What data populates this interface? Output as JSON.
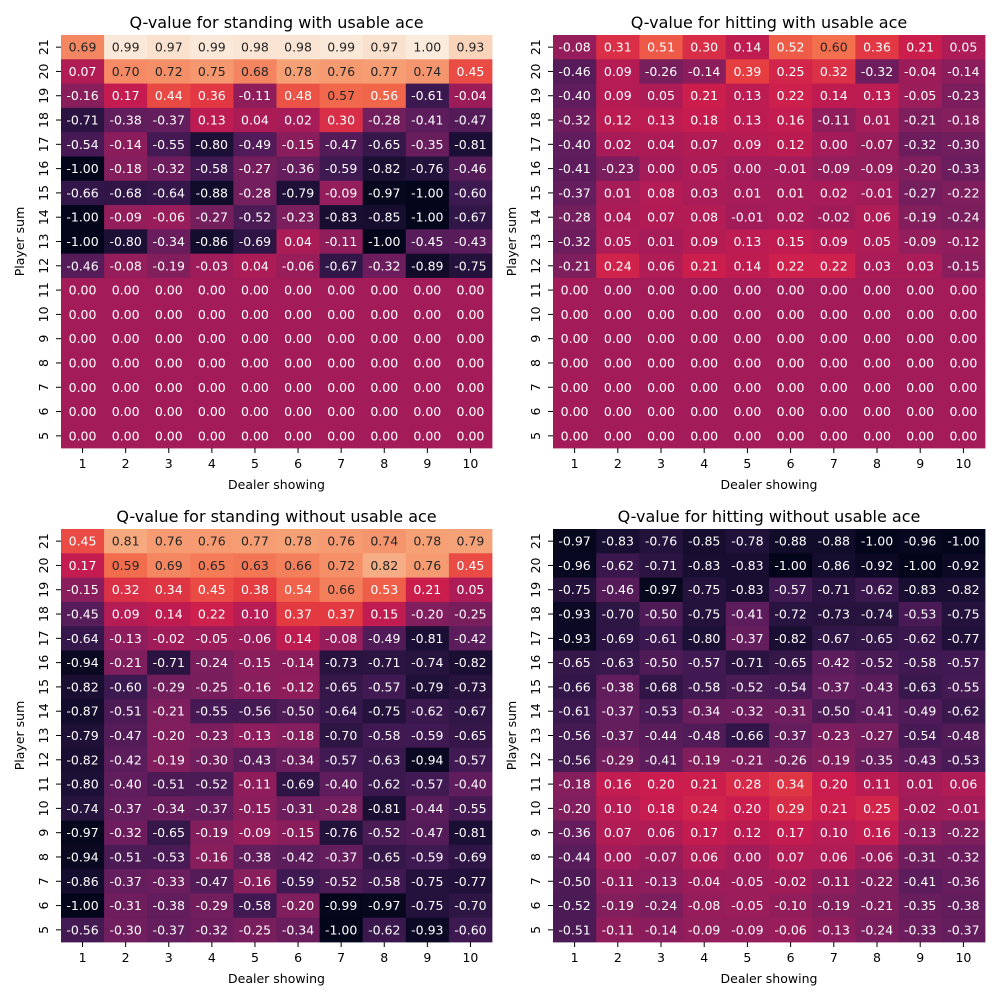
{
  "chart_data": [
    {
      "type": "heatmap",
      "title": "Q-value for standing with usable ace",
      "xlabel": "Dealer showing",
      "ylabel": "Player sum",
      "x": [
        1,
        2,
        3,
        4,
        5,
        6,
        7,
        8,
        9,
        10
      ],
      "y": [
        21,
        20,
        19,
        18,
        17,
        16,
        15,
        14,
        13,
        12,
        11,
        10,
        9,
        8,
        7,
        6,
        5
      ],
      "values": [
        [
          0.69,
          0.99,
          0.97,
          0.99,
          0.98,
          0.98,
          0.99,
          0.97,
          1.0,
          0.93
        ],
        [
          0.07,
          0.7,
          0.72,
          0.75,
          0.68,
          0.78,
          0.76,
          0.77,
          0.74,
          0.45
        ],
        [
          -0.16,
          0.17,
          0.44,
          0.36,
          -0.11,
          0.48,
          0.57,
          0.56,
          -0.61,
          -0.04
        ],
        [
          -0.71,
          -0.38,
          -0.37,
          0.13,
          0.04,
          0.02,
          0.3,
          -0.28,
          -0.41,
          -0.47
        ],
        [
          -0.54,
          -0.14,
          -0.55,
          -0.8,
          -0.49,
          -0.15,
          -0.47,
          -0.65,
          -0.35,
          -0.81
        ],
        [
          -1.0,
          -0.18,
          -0.32,
          -0.58,
          -0.27,
          -0.36,
          -0.59,
          -0.82,
          -0.76,
          -0.46
        ],
        [
          -0.66,
          -0.68,
          -0.64,
          -0.88,
          -0.28,
          -0.79,
          -0.09,
          -0.97,
          -1.0,
          -0.6
        ],
        [
          -1.0,
          -0.09,
          -0.06,
          -0.27,
          -0.52,
          -0.23,
          -0.83,
          -0.85,
          -1.0,
          -0.67
        ],
        [
          -1.0,
          -0.8,
          -0.34,
          -0.86,
          -0.69,
          0.04,
          -0.11,
          -1.0,
          -0.45,
          -0.43
        ],
        [
          -0.46,
          -0.08,
          -0.19,
          -0.03,
          0.04,
          -0.06,
          -0.67,
          -0.32,
          -0.89,
          -0.75
        ],
        [
          0.0,
          0.0,
          0.0,
          0.0,
          0.0,
          0.0,
          0.0,
          0.0,
          0.0,
          0.0
        ],
        [
          0.0,
          0.0,
          0.0,
          0.0,
          0.0,
          0.0,
          0.0,
          0.0,
          0.0,
          0.0
        ],
        [
          0.0,
          0.0,
          0.0,
          0.0,
          0.0,
          0.0,
          0.0,
          0.0,
          0.0,
          0.0
        ],
        [
          0.0,
          0.0,
          0.0,
          0.0,
          0.0,
          0.0,
          0.0,
          0.0,
          0.0,
          0.0
        ],
        [
          0.0,
          0.0,
          0.0,
          0.0,
          0.0,
          0.0,
          0.0,
          0.0,
          0.0,
          0.0
        ],
        [
          0.0,
          0.0,
          0.0,
          0.0,
          0.0,
          0.0,
          0.0,
          0.0,
          0.0,
          0.0
        ],
        [
          0.0,
          0.0,
          0.0,
          0.0,
          0.0,
          0.0,
          0.0,
          0.0,
          0.0,
          0.0
        ]
      ],
      "color_range": [
        -1,
        1
      ],
      "colormap": "rocket"
    },
    {
      "type": "heatmap",
      "title": "Q-value for hitting with usable ace",
      "xlabel": "Dealer showing",
      "ylabel": "Player sum",
      "x": [
        1,
        2,
        3,
        4,
        5,
        6,
        7,
        8,
        9,
        10
      ],
      "y": [
        21,
        20,
        19,
        18,
        17,
        16,
        15,
        14,
        13,
        12,
        11,
        10,
        9,
        8,
        7,
        6,
        5
      ],
      "values": [
        [
          -0.08,
          0.31,
          0.51,
          0.3,
          0.14,
          0.52,
          0.6,
          0.36,
          0.21,
          0.05
        ],
        [
          -0.46,
          0.09,
          -0.26,
          -0.14,
          0.39,
          0.25,
          0.32,
          -0.32,
          -0.04,
          -0.14
        ],
        [
          -0.4,
          0.09,
          0.05,
          0.21,
          0.13,
          0.22,
          0.14,
          0.13,
          -0.05,
          -0.23
        ],
        [
          -0.32,
          0.12,
          0.13,
          0.18,
          0.13,
          0.16,
          -0.11,
          0.01,
          -0.21,
          -0.18
        ],
        [
          -0.4,
          0.02,
          0.04,
          0.07,
          0.09,
          0.12,
          -0.0,
          -0.07,
          -0.32,
          -0.3
        ],
        [
          -0.41,
          -0.23,
          -0.0,
          0.05,
          -0.0,
          -0.01,
          -0.09,
          -0.09,
          -0.2,
          -0.33
        ],
        [
          -0.37,
          0.01,
          0.08,
          0.03,
          0.01,
          0.01,
          0.02,
          -0.01,
          -0.27,
          -0.22
        ],
        [
          -0.28,
          0.04,
          0.07,
          0.08,
          -0.01,
          0.02,
          -0.02,
          0.06,
          -0.19,
          -0.24
        ],
        [
          -0.32,
          0.05,
          0.01,
          0.09,
          0.13,
          0.15,
          0.09,
          0.05,
          -0.09,
          -0.12
        ],
        [
          -0.21,
          0.24,
          0.06,
          0.21,
          0.14,
          0.22,
          0.22,
          0.03,
          0.03,
          -0.15
        ],
        [
          0.0,
          0.0,
          0.0,
          0.0,
          0.0,
          0.0,
          0.0,
          0.0,
          0.0,
          0.0
        ],
        [
          0.0,
          0.0,
          0.0,
          0.0,
          0.0,
          0.0,
          0.0,
          0.0,
          0.0,
          0.0
        ],
        [
          0.0,
          0.0,
          0.0,
          0.0,
          0.0,
          0.0,
          0.0,
          0.0,
          0.0,
          0.0
        ],
        [
          0.0,
          0.0,
          0.0,
          0.0,
          0.0,
          0.0,
          0.0,
          0.0,
          0.0,
          0.0
        ],
        [
          0.0,
          0.0,
          0.0,
          0.0,
          0.0,
          0.0,
          0.0,
          0.0,
          0.0,
          0.0
        ],
        [
          0.0,
          0.0,
          0.0,
          0.0,
          0.0,
          0.0,
          0.0,
          0.0,
          0.0,
          0.0
        ],
        [
          0.0,
          0.0,
          0.0,
          0.0,
          0.0,
          0.0,
          0.0,
          0.0,
          0.0,
          0.0
        ]
      ],
      "color_range": [
        -1,
        1
      ],
      "colormap": "rocket"
    },
    {
      "type": "heatmap",
      "title": "Q-value for standing without usable ace",
      "xlabel": "Dealer showing",
      "ylabel": "Player sum",
      "x": [
        1,
        2,
        3,
        4,
        5,
        6,
        7,
        8,
        9,
        10
      ],
      "y": [
        21,
        20,
        19,
        18,
        17,
        16,
        15,
        14,
        13,
        12,
        11,
        10,
        9,
        8,
        7,
        6,
        5
      ],
      "values": [
        [
          0.45,
          0.81,
          0.76,
          0.76,
          0.77,
          0.78,
          0.76,
          0.74,
          0.78,
          0.79
        ],
        [
          0.17,
          0.59,
          0.69,
          0.65,
          0.63,
          0.66,
          0.72,
          0.82,
          0.76,
          0.45
        ],
        [
          -0.15,
          0.32,
          0.34,
          0.45,
          0.38,
          0.54,
          0.66,
          0.53,
          0.21,
          0.05
        ],
        [
          -0.45,
          0.09,
          0.14,
          0.22,
          0.1,
          0.37,
          0.37,
          0.15,
          -0.2,
          -0.25
        ],
        [
          -0.64,
          -0.13,
          -0.02,
          -0.05,
          -0.06,
          0.14,
          -0.08,
          -0.49,
          -0.81,
          -0.42
        ],
        [
          -0.94,
          -0.21,
          -0.71,
          -0.24,
          -0.15,
          -0.14,
          -0.73,
          -0.71,
          -0.74,
          -0.82
        ],
        [
          -0.82,
          -0.6,
          -0.29,
          -0.25,
          -0.16,
          -0.12,
          -0.65,
          -0.57,
          -0.79,
          -0.73
        ],
        [
          -0.87,
          -0.51,
          -0.21,
          -0.55,
          -0.56,
          -0.5,
          -0.64,
          -0.75,
          -0.62,
          -0.67
        ],
        [
          -0.79,
          -0.47,
          -0.2,
          -0.23,
          -0.13,
          -0.18,
          -0.7,
          -0.58,
          -0.59,
          -0.65
        ],
        [
          -0.82,
          -0.42,
          -0.19,
          -0.3,
          -0.43,
          -0.34,
          -0.57,
          -0.63,
          -0.94,
          -0.57
        ],
        [
          -0.8,
          -0.4,
          -0.51,
          -0.52,
          -0.11,
          -0.69,
          -0.4,
          -0.62,
          -0.57,
          -0.4
        ],
        [
          -0.74,
          -0.37,
          -0.34,
          -0.37,
          -0.15,
          -0.31,
          -0.28,
          -0.81,
          -0.44,
          -0.55
        ],
        [
          -0.97,
          -0.32,
          -0.65,
          -0.19,
          -0.09,
          -0.15,
          -0.76,
          -0.52,
          -0.47,
          -0.81
        ],
        [
          -0.94,
          -0.51,
          -0.53,
          -0.16,
          -0.38,
          -0.42,
          -0.37,
          -0.65,
          -0.59,
          -0.69
        ],
        [
          -0.86,
          -0.37,
          -0.33,
          -0.47,
          -0.16,
          -0.59,
          -0.52,
          -0.58,
          -0.75,
          -0.77
        ],
        [
          -1.0,
          -0.31,
          -0.38,
          -0.29,
          -0.58,
          -0.2,
          -0.99,
          -0.97,
          -0.75,
          -0.7
        ],
        [
          -0.56,
          -0.3,
          -0.37,
          -0.32,
          -0.25,
          -0.34,
          -1.0,
          -0.62,
          -0.93,
          -0.6
        ]
      ],
      "color_range": [
        -1,
        1
      ],
      "colormap": "rocket"
    },
    {
      "type": "heatmap",
      "title": "Q-value for hitting without usable ace",
      "xlabel": "Dealer showing",
      "ylabel": "Player sum",
      "x": [
        1,
        2,
        3,
        4,
        5,
        6,
        7,
        8,
        9,
        10
      ],
      "y": [
        21,
        20,
        19,
        18,
        17,
        16,
        15,
        14,
        13,
        12,
        11,
        10,
        9,
        8,
        7,
        6,
        5
      ],
      "values": [
        [
          -0.97,
          -0.83,
          -0.76,
          -0.85,
          -0.78,
          -0.88,
          -0.88,
          -1.0,
          -0.96,
          -1.0
        ],
        [
          -0.96,
          -0.62,
          -0.71,
          -0.83,
          -0.83,
          -1.0,
          -0.86,
          -0.92,
          -1.0,
          -0.92
        ],
        [
          -0.75,
          -0.46,
          -0.97,
          -0.75,
          -0.83,
          -0.57,
          -0.71,
          -0.62,
          -0.83,
          -0.82
        ],
        [
          -0.93,
          -0.7,
          -0.5,
          -0.75,
          -0.41,
          -0.72,
          -0.73,
          -0.74,
          -0.53,
          -0.75
        ],
        [
          -0.93,
          -0.69,
          -0.61,
          -0.8,
          -0.37,
          -0.82,
          -0.67,
          -0.65,
          -0.62,
          -0.77
        ],
        [
          -0.65,
          -0.63,
          -0.5,
          -0.57,
          -0.71,
          -0.65,
          -0.42,
          -0.52,
          -0.58,
          -0.57
        ],
        [
          -0.66,
          -0.38,
          -0.68,
          -0.58,
          -0.52,
          -0.54,
          -0.37,
          -0.43,
          -0.63,
          -0.55
        ],
        [
          -0.61,
          -0.37,
          -0.53,
          -0.34,
          -0.32,
          -0.31,
          -0.5,
          -0.41,
          -0.49,
          -0.62
        ],
        [
          -0.56,
          -0.37,
          -0.44,
          -0.48,
          -0.66,
          -0.37,
          -0.23,
          -0.27,
          -0.54,
          -0.48
        ],
        [
          -0.56,
          -0.29,
          -0.41,
          -0.19,
          -0.21,
          -0.26,
          -0.19,
          -0.35,
          -0.43,
          -0.53
        ],
        [
          -0.18,
          0.16,
          0.2,
          0.21,
          0.28,
          0.34,
          0.2,
          0.11,
          0.01,
          0.06
        ],
        [
          -0.2,
          0.1,
          0.18,
          0.24,
          0.2,
          0.29,
          0.21,
          0.25,
          -0.02,
          -0.01
        ],
        [
          -0.36,
          0.07,
          0.06,
          0.17,
          0.12,
          0.17,
          0.1,
          0.16,
          -0.13,
          -0.22
        ],
        [
          -0.44,
          0.0,
          -0.07,
          0.06,
          0.0,
          0.07,
          0.06,
          -0.06,
          -0.31,
          -0.32
        ],
        [
          -0.5,
          -0.11,
          -0.13,
          -0.04,
          -0.05,
          -0.02,
          -0.11,
          -0.22,
          -0.41,
          -0.36
        ],
        [
          -0.52,
          -0.19,
          -0.24,
          -0.08,
          -0.05,
          -0.1,
          -0.19,
          -0.21,
          -0.35,
          -0.38
        ],
        [
          -0.51,
          -0.11,
          -0.14,
          -0.09,
          -0.09,
          -0.06,
          -0.13,
          -0.24,
          -0.33,
          -0.37
        ]
      ],
      "color_range": [
        -1,
        1
      ],
      "colormap": "rocket"
    }
  ]
}
